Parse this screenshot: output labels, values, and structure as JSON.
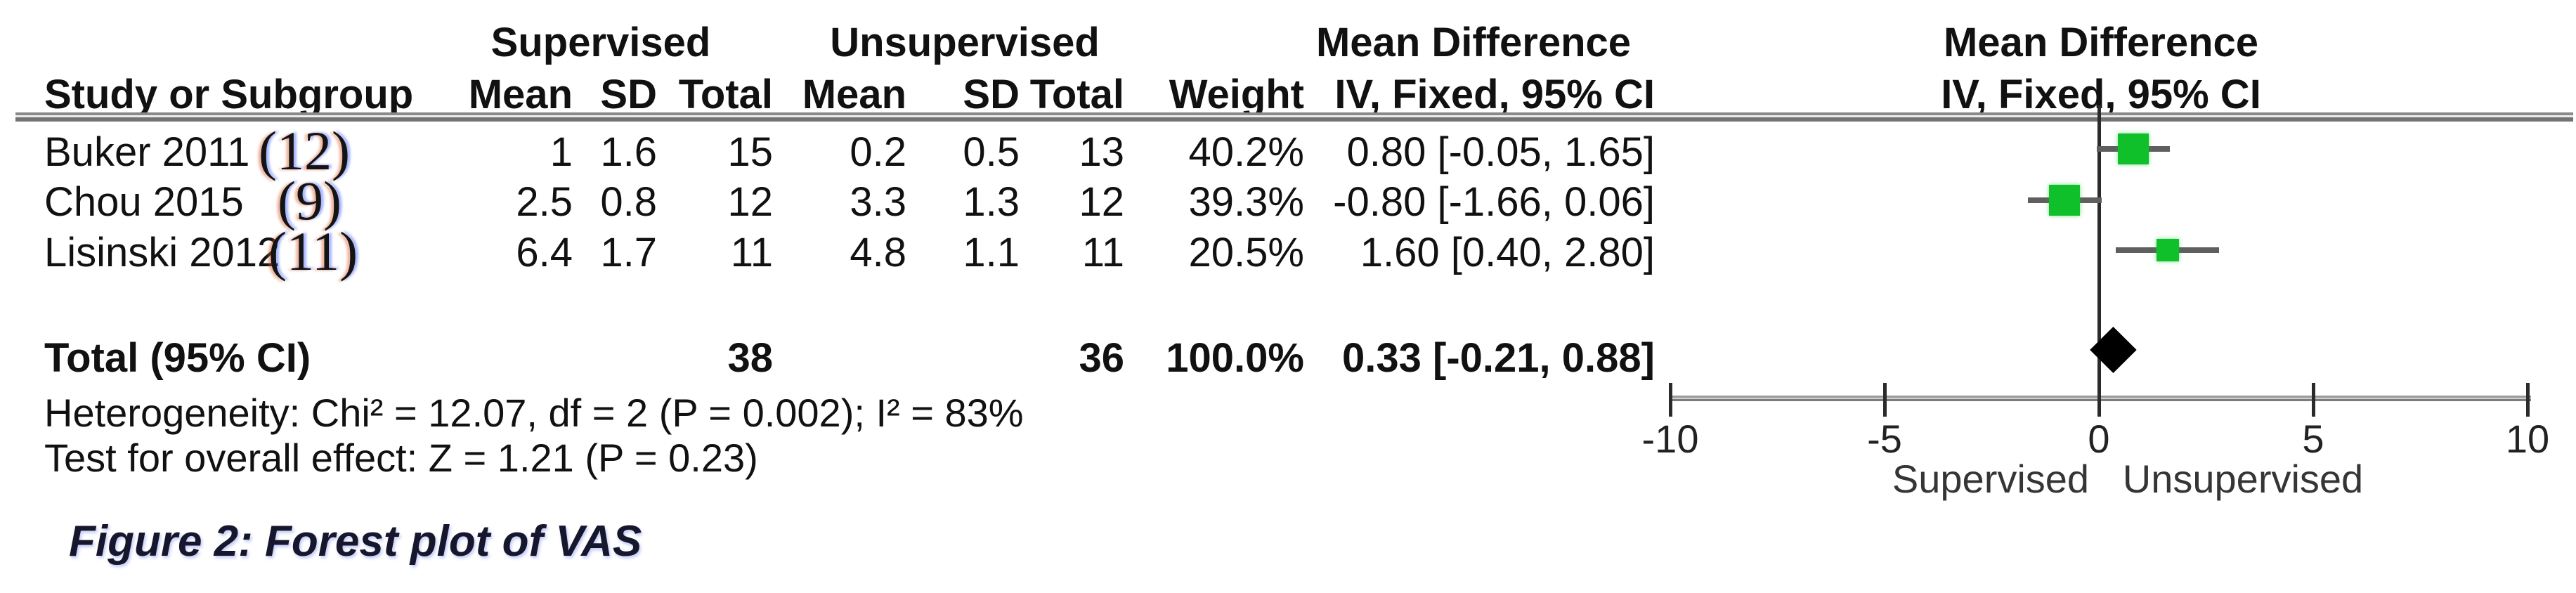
{
  "table": {
    "group_headers": {
      "supervised": "Supervised",
      "unsupervised": "Unsupervised",
      "mean_difference_left": "Mean Difference",
      "mean_difference_right": "Mean Difference"
    },
    "column_headers": {
      "study": "Study or Subgroup",
      "mean1": "Mean",
      "sd1": "SD",
      "total1": "Total",
      "mean2": "Mean",
      "sd2": "SD",
      "total2": "Total",
      "weight": "Weight",
      "ci_left": "IV, Fixed, 95% CI",
      "ci_right": "IV, Fixed, 95% CI"
    },
    "rows": [
      {
        "study": "Buker 2011",
        "citation": "(12)",
        "sup_mean": "1",
        "sup_sd": "1.6",
        "sup_total": "15",
        "unsup_mean": "0.2",
        "unsup_sd": "0.5",
        "unsup_total": "13",
        "weight": "40.2%",
        "ci_text": "0.80 [-0.05, 1.65]"
      },
      {
        "study": "Chou 2015",
        "citation": "(9)",
        "sup_mean": "2.5",
        "sup_sd": "0.8",
        "sup_total": "12",
        "unsup_mean": "3.3",
        "unsup_sd": "1.3",
        "unsup_total": "12",
        "weight": "39.3%",
        "ci_text": "-0.80 [-1.66, 0.06]"
      },
      {
        "study": "Lisinski 2012",
        "citation": "(11)",
        "sup_mean": "6.4",
        "sup_sd": "1.7",
        "sup_total": "11",
        "unsup_mean": "4.8",
        "unsup_sd": "1.1",
        "unsup_total": "11",
        "weight": "20.5%",
        "ci_text": "1.60 [0.40, 2.80]"
      }
    ],
    "total_row": {
      "label": "Total (95% CI)",
      "sup_total": "38",
      "unsup_total": "36",
      "weight": "100.0%",
      "ci_text": "0.33 [-0.21, 0.88]"
    },
    "heterogeneity": "Heterogeneity: Chi² = 12.07, df = 2 (P = 0.002); I² = 83%",
    "overall_effect": "Test for overall effect: Z = 1.21 (P = 0.23)"
  },
  "caption": "Figure 2: Forest plot of VAS",
  "chart_data": {
    "type": "forest",
    "effect_measure": "Mean Difference",
    "method": "IV, Fixed, 95% CI",
    "studies": [
      {
        "name": "Buker 2011",
        "citation": 12,
        "supervised": {
          "mean": 1,
          "sd": 1.6,
          "total": 15
        },
        "unsupervised": {
          "mean": 0.2,
          "sd": 0.5,
          "total": 13
        },
        "weight_pct": 40.2,
        "md": 0.8,
        "ci_low": -0.05,
        "ci_high": 1.65
      },
      {
        "name": "Chou 2015",
        "citation": 9,
        "supervised": {
          "mean": 2.5,
          "sd": 0.8,
          "total": 12
        },
        "unsupervised": {
          "mean": 3.3,
          "sd": 1.3,
          "total": 12
        },
        "weight_pct": 39.3,
        "md": -0.8,
        "ci_low": -1.66,
        "ci_high": 0.06
      },
      {
        "name": "Lisinski 2012",
        "citation": 11,
        "supervised": {
          "mean": 6.4,
          "sd": 1.7,
          "total": 11
        },
        "unsupervised": {
          "mean": 4.8,
          "sd": 1.1,
          "total": 11
        },
        "weight_pct": 20.5,
        "md": 1.6,
        "ci_low": 0.4,
        "ci_high": 2.8
      }
    ],
    "total": {
      "label": "Total (95% CI)",
      "supervised_total": 38,
      "unsupervised_total": 36,
      "weight_pct": 100.0,
      "md": 0.33,
      "ci_low": -0.21,
      "ci_high": 0.88
    },
    "heterogeneity": {
      "chi2": 12.07,
      "df": 2,
      "p": 0.002,
      "i2_pct": 83
    },
    "overall_effect_test": {
      "z": 1.21,
      "p": 0.23
    },
    "x_axis": {
      "xlim": [
        -10,
        10
      ],
      "ticks": [
        -10,
        -5,
        0,
        5,
        10
      ],
      "left_label": "Supervised",
      "right_label": "Unsupervised"
    },
    "marker_color": "#0fc02a",
    "diamond_color": "#000000"
  }
}
